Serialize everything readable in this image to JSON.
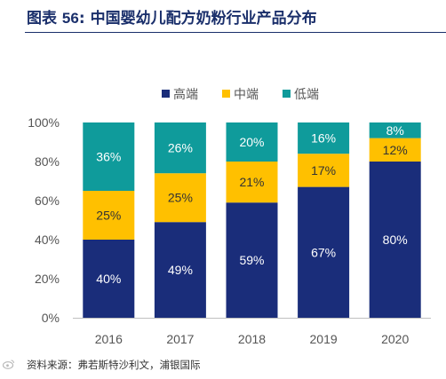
{
  "header": {
    "prefix": "图表",
    "number": "56",
    "title": "中国婴幼儿配方奶粉行业产品分布"
  },
  "chart_data": {
    "type": "bar",
    "stacked": true,
    "categories": [
      "2016",
      "2017",
      "2018",
      "2019",
      "2020"
    ],
    "series": [
      {
        "name": "高端",
        "color": "#1a2d7a",
        "values": [
          40,
          49,
          59,
          67,
          80
        ],
        "labels": [
          "40%",
          "49%",
          "59%",
          "67%",
          "80%"
        ]
      },
      {
        "name": "中端",
        "color": "#ffc000",
        "values": [
          25,
          25,
          21,
          17,
          12
        ],
        "labels": [
          "25%",
          "25%",
          "21%",
          "17%",
          "12%"
        ]
      },
      {
        "name": "低端",
        "color": "#0f9b9b",
        "values": [
          36,
          26,
          20,
          16,
          8
        ],
        "labels": [
          "36%",
          "26%",
          "20%",
          "16%",
          "8%"
        ]
      }
    ],
    "ylim": [
      0,
      100
    ],
    "yticks": [
      "0%",
      "20%",
      "40%",
      "60%",
      "80%",
      "100%"
    ],
    "legend_position": "top-center",
    "grid": false
  },
  "source": "资料来源：弗若斯特沙利文，浦银国际"
}
